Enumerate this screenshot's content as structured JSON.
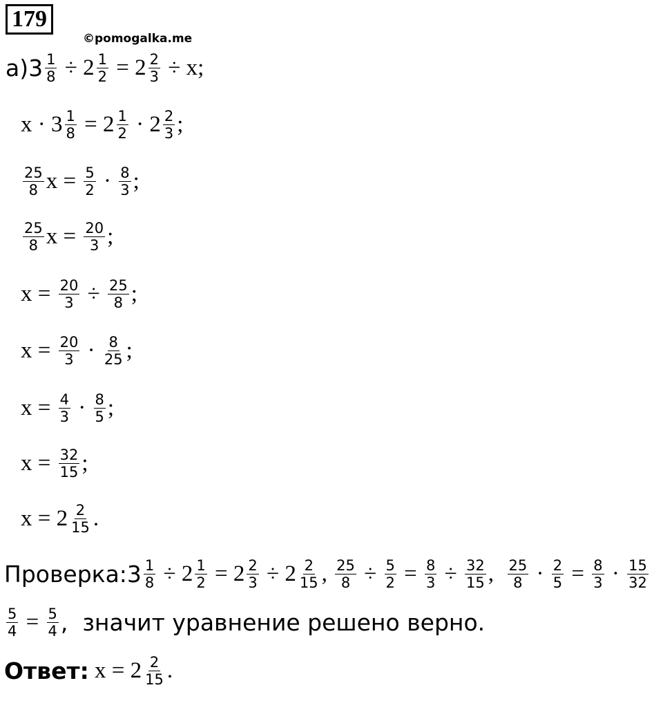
{
  "header": {
    "number": "179",
    "watermark": "©pomogalka.me"
  },
  "lines": [
    {
      "tokens": [
        "а)3",
        {
          "num": "1",
          "den": "8"
        },
        " ÷ 2",
        {
          "num": "1",
          "den": "2"
        },
        " = 2",
        {
          "num": "2",
          "den": "3"
        },
        " ÷ x;"
      ]
    },
    {
      "tokens": [
        "x · 3",
        {
          "num": "1",
          "den": "8"
        },
        " = 2",
        {
          "num": "1",
          "den": "2"
        },
        " · 2",
        {
          "num": "2",
          "den": "3"
        },
        ";"
      ]
    },
    {
      "tokens": [
        {
          "num": "25",
          "den": "8"
        },
        "x = ",
        {
          "num": "5",
          "den": "2"
        },
        " · ",
        {
          "num": "8",
          "den": "3"
        },
        ";"
      ]
    },
    {
      "tokens": [
        {
          "num": "25",
          "den": "8"
        },
        "x = ",
        {
          "num": "20",
          "den": "3"
        },
        ";"
      ]
    },
    {
      "tokens": [
        "x = ",
        {
          "num": "20",
          "den": "3"
        },
        " ÷ ",
        {
          "num": "25",
          "den": "8"
        },
        ";"
      ]
    },
    {
      "tokens": [
        "x = ",
        {
          "num": "20",
          "den": "3"
        },
        " · ",
        {
          "num": "8",
          "den": "25"
        },
        ";"
      ]
    },
    {
      "tokens": [
        "x = ",
        {
          "num": "4",
          "den": "3"
        },
        " · ",
        {
          "num": "8",
          "den": "5"
        },
        ";"
      ]
    },
    {
      "tokens": [
        "x = ",
        {
          "num": "32",
          "den": "15"
        },
        ";"
      ]
    },
    {
      "tokens": [
        "x = 2",
        {
          "num": "2",
          "den": "15"
        },
        "."
      ]
    },
    {
      "tokens": [
        "Проверка:3",
        {
          "num": "1",
          "den": "8"
        },
        " ÷ 2",
        {
          "num": "1",
          "den": "2"
        },
        " = 2",
        {
          "num": "2",
          "den": "3"
        },
        " ÷ 2",
        {
          "num": "2",
          "den": "15"
        },
        ", ",
        {
          "num": "25",
          "den": "8"
        },
        " ÷ ",
        {
          "num": "5",
          "den": "2"
        },
        " = ",
        {
          "num": "8",
          "den": "3"
        },
        " ÷ ",
        {
          "num": "32",
          "den": "15"
        },
        ",  ",
        {
          "num": "25",
          "den": "8"
        },
        " · ",
        {
          "num": "2",
          "den": "5"
        },
        " = ",
        {
          "num": "8",
          "den": "3"
        },
        " · ",
        {
          "num": "15",
          "den": "32"
        }
      ]
    },
    {
      "tokens": [
        {
          "num": "5",
          "den": "4"
        },
        " = ",
        {
          "num": "5",
          "den": "4"
        },
        ",  значит уравнение решено верно."
      ]
    }
  ],
  "answer": {
    "label": "Ответ:",
    "tokens": [
      " x = 2",
      {
        "num": "2",
        "den": "15"
      },
      "."
    ]
  }
}
